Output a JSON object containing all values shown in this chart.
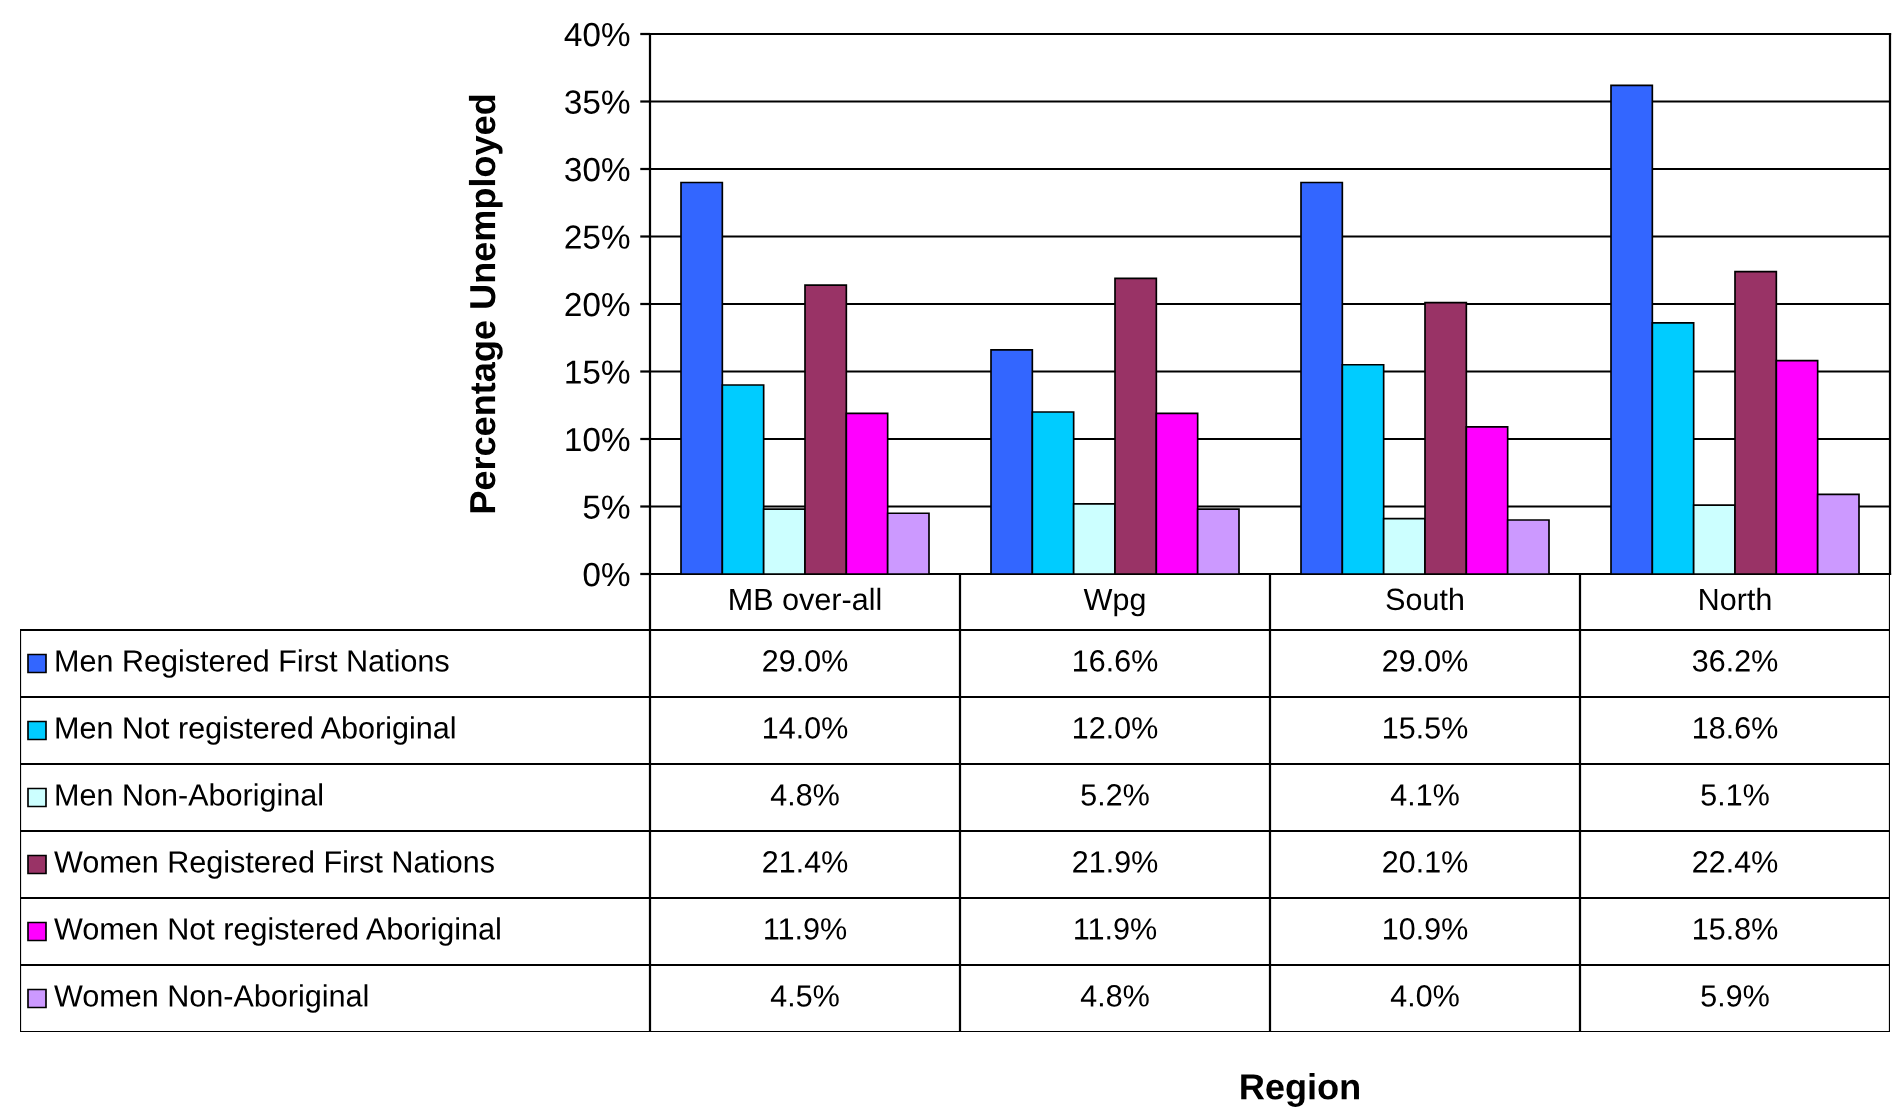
{
  "chart_data": {
    "type": "bar",
    "ylabel": "Percentage Unemployed",
    "annotations": [
      "Region"
    ],
    "categories": [
      "MB over-all",
      "Wpg",
      "South",
      "North"
    ],
    "series": [
      {
        "name": "Men Registered First Nations",
        "color": "#3366ff",
        "values": [
          29.0,
          16.6,
          29.0,
          36.2
        ],
        "value_labels": [
          "29.0%",
          "16.6%",
          "29.0%",
          "36.2%"
        ]
      },
      {
        "name": "Men Not registered Aboriginal",
        "color": "#00ccff",
        "values": [
          14.0,
          12.0,
          15.5,
          18.6
        ],
        "value_labels": [
          "14.0%",
          "12.0%",
          "15.5%",
          "18.6%"
        ]
      },
      {
        "name": "Men Non-Aboriginal",
        "color": "#ccffff",
        "values": [
          4.8,
          5.2,
          4.1,
          5.1
        ],
        "value_labels": [
          "4.8%",
          "5.2%",
          "4.1%",
          "5.1%"
        ]
      },
      {
        "name": "Women Registered First Nations",
        "color": "#993366",
        "values": [
          21.4,
          21.9,
          20.1,
          22.4
        ],
        "value_labels": [
          "21.4%",
          "21.9%",
          "20.1%",
          "22.4%"
        ]
      },
      {
        "name": "Women Not registered Aboriginal",
        "color": "#ff00ff",
        "values": [
          11.9,
          11.9,
          10.9,
          15.8
        ],
        "value_labels": [
          "11.9%",
          "11.9%",
          "10.9%",
          "15.8%"
        ]
      },
      {
        "name": "Women Non-Aboriginal",
        "color": "#cc99ff",
        "values": [
          4.5,
          4.8,
          4.0,
          5.9
        ],
        "value_labels": [
          "4.5%",
          "4.8%",
          "4.0%",
          "5.9%"
        ]
      }
    ],
    "ylim": [
      0,
      40
    ],
    "yticks": [
      {
        "value": 0,
        "label": "0%"
      },
      {
        "value": 5,
        "label": "5%"
      },
      {
        "value": 10,
        "label": "10%"
      },
      {
        "value": 15,
        "label": "15%"
      },
      {
        "value": 20,
        "label": "20%"
      },
      {
        "value": 25,
        "label": "25%"
      },
      {
        "value": 30,
        "label": "30%"
      },
      {
        "value": 35,
        "label": "35%"
      },
      {
        "value": 40,
        "label": "40%"
      }
    ],
    "grid": "y",
    "legend": "bottom left"
  }
}
